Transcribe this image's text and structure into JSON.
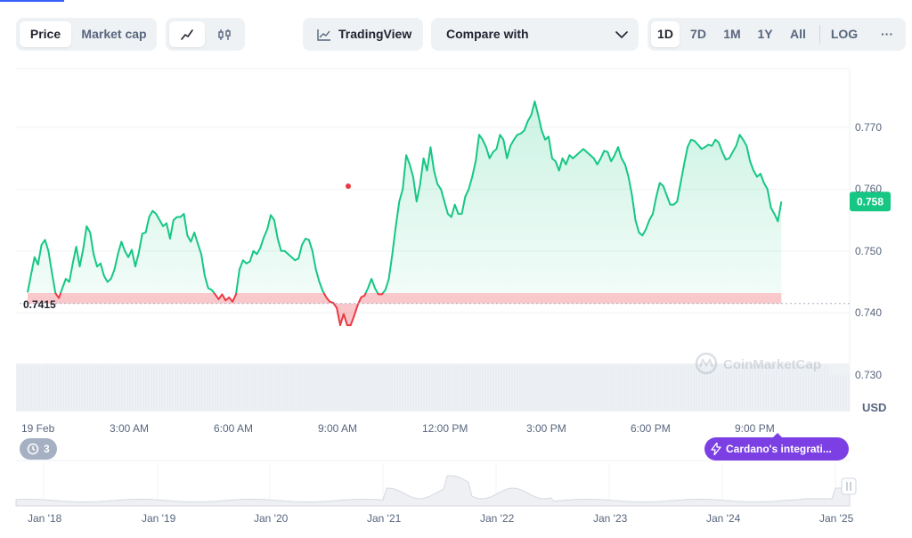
{
  "toolbar": {
    "metric_tabs": [
      "Price",
      "Market cap"
    ],
    "active_metric": "Price",
    "chart_kinds": [
      "line-chart-icon",
      "candlestick-icon"
    ],
    "tradingview_label": "TradingView",
    "compare_label": "Compare with",
    "ranges": [
      "1D",
      "7D",
      "1M",
      "1Y",
      "All"
    ],
    "active_range": "1D",
    "log_label": "LOG",
    "more_label": "···"
  },
  "chart_data": {
    "type": "area",
    "title": "",
    "ylabel": "USD",
    "ylim": [
      0.7275,
      0.7795
    ],
    "yticks": [
      0.73,
      0.74,
      0.75,
      0.76,
      0.77
    ],
    "ytick_labels": [
      "0.730",
      "0.740",
      "0.750",
      "0.760",
      "0.770"
    ],
    "xticks": [
      "19 Feb",
      "3:00 AM",
      "6:00 AM",
      "9:00 AM",
      "12:00 PM",
      "3:00 PM",
      "6:00 PM",
      "9:00 PM"
    ],
    "x_hours": [
      0,
      3,
      6,
      9,
      12,
      15,
      18,
      21
    ],
    "baseline": 0.7415,
    "baseline_label": "0.7415",
    "current_price": 0.758,
    "current_price_label": "0.758",
    "up_color": "#16c784",
    "down_color": "#ea3943",
    "series": [
      {
        "points": [
          [
            0.0,
            0.7433
          ],
          [
            0.1,
            0.7462
          ],
          [
            0.2,
            0.749
          ],
          [
            0.3,
            0.7478
          ],
          [
            0.4,
            0.751
          ],
          [
            0.5,
            0.7518
          ],
          [
            0.6,
            0.75
          ],
          [
            0.7,
            0.7465
          ],
          [
            0.8,
            0.7432
          ],
          [
            0.9,
            0.7424
          ],
          [
            1.0,
            0.744
          ],
          [
            1.1,
            0.7455
          ],
          [
            1.2,
            0.745
          ],
          [
            1.3,
            0.748
          ],
          [
            1.4,
            0.7507
          ],
          [
            1.5,
            0.7475
          ],
          [
            1.6,
            0.7503
          ],
          [
            1.7,
            0.754
          ],
          [
            1.8,
            0.753
          ],
          [
            1.9,
            0.7495
          ],
          [
            2.0,
            0.7475
          ],
          [
            2.1,
            0.748
          ],
          [
            2.2,
            0.746
          ],
          [
            2.3,
            0.745
          ],
          [
            2.4,
            0.7455
          ],
          [
            2.5,
            0.747
          ],
          [
            2.6,
            0.7495
          ],
          [
            2.7,
            0.7515
          ],
          [
            2.8,
            0.75
          ],
          [
            2.9,
            0.749
          ],
          [
            3.0,
            0.7502
          ],
          [
            3.1,
            0.7475
          ],
          [
            3.2,
            0.7497
          ],
          [
            3.3,
            0.7528
          ],
          [
            3.4,
            0.753
          ],
          [
            3.5,
            0.7555
          ],
          [
            3.6,
            0.7565
          ],
          [
            3.7,
            0.756
          ],
          [
            3.8,
            0.755
          ],
          [
            3.9,
            0.754
          ],
          [
            4.0,
            0.7545
          ],
          [
            4.1,
            0.752
          ],
          [
            4.2,
            0.755
          ],
          [
            4.3,
            0.7555
          ],
          [
            4.4,
            0.7555
          ],
          [
            4.5,
            0.756
          ],
          [
            4.6,
            0.7525
          ],
          [
            4.7,
            0.7515
          ],
          [
            4.8,
            0.753
          ],
          [
            4.9,
            0.7512
          ],
          [
            5.0,
            0.7495
          ],
          [
            5.1,
            0.746
          ],
          [
            5.2,
            0.744
          ],
          [
            5.3,
            0.7437
          ],
          [
            5.4,
            0.743
          ],
          [
            5.5,
            0.7422
          ],
          [
            5.6,
            0.743
          ],
          [
            5.7,
            0.742
          ],
          [
            5.8,
            0.7425
          ],
          [
            5.9,
            0.7418
          ],
          [
            6.0,
            0.743
          ],
          [
            6.1,
            0.747
          ],
          [
            6.2,
            0.7485
          ],
          [
            6.3,
            0.748
          ],
          [
            6.4,
            0.7483
          ],
          [
            6.5,
            0.75
          ],
          [
            6.6,
            0.7495
          ],
          [
            6.7,
            0.7505
          ],
          [
            6.8,
            0.7522
          ],
          [
            6.9,
            0.7535
          ],
          [
            7.0,
            0.7558
          ],
          [
            7.1,
            0.755
          ],
          [
            7.2,
            0.752
          ],
          [
            7.3,
            0.75
          ],
          [
            7.4,
            0.75
          ],
          [
            7.5,
            0.7495
          ],
          [
            7.6,
            0.749
          ],
          [
            7.7,
            0.7485
          ],
          [
            7.8,
            0.7488
          ],
          [
            7.9,
            0.751
          ],
          [
            8.0,
            0.752
          ],
          [
            8.1,
            0.7518
          ],
          [
            8.2,
            0.75
          ],
          [
            8.3,
            0.747
          ],
          [
            8.4,
            0.745
          ],
          [
            8.5,
            0.7435
          ],
          [
            8.6,
            0.7425
          ],
          [
            8.7,
            0.7418
          ],
          [
            8.8,
            0.7416
          ],
          [
            8.9,
            0.7408
          ],
          [
            9.0,
            0.738
          ],
          [
            9.1,
            0.7398
          ],
          [
            9.2,
            0.738
          ],
          [
            9.3,
            0.738
          ],
          [
            9.4,
            0.7395
          ],
          [
            9.5,
            0.7412
          ],
          [
            9.6,
            0.7425
          ],
          [
            9.7,
            0.7428
          ],
          [
            9.8,
            0.744
          ],
          [
            9.9,
            0.7455
          ],
          [
            10.0,
            0.744
          ],
          [
            10.1,
            0.743
          ],
          [
            10.2,
            0.743
          ],
          [
            10.3,
            0.7437
          ],
          [
            10.4,
            0.7455
          ],
          [
            10.5,
            0.7495
          ],
          [
            10.6,
            0.754
          ],
          [
            10.7,
            0.758
          ],
          [
            10.8,
            0.76
          ],
          [
            10.9,
            0.7655
          ],
          [
            11.0,
            0.764
          ],
          [
            11.1,
            0.762
          ],
          [
            11.2,
            0.758
          ],
          [
            11.3,
            0.7608
          ],
          [
            11.4,
            0.765
          ],
          [
            11.5,
            0.763
          ],
          [
            11.6,
            0.7668
          ],
          [
            11.7,
            0.763
          ],
          [
            11.8,
            0.7608
          ],
          [
            11.9,
            0.76
          ],
          [
            12.0,
            0.758
          ],
          [
            12.1,
            0.756
          ],
          [
            12.2,
            0.7555
          ],
          [
            12.3,
            0.7575
          ],
          [
            12.4,
            0.756
          ],
          [
            12.5,
            0.756
          ],
          [
            12.6,
            0.7588
          ],
          [
            12.7,
            0.76
          ],
          [
            12.8,
            0.762
          ],
          [
            12.9,
            0.7645
          ],
          [
            13.0,
            0.7688
          ],
          [
            13.1,
            0.768
          ],
          [
            13.2,
            0.7668
          ],
          [
            13.3,
            0.765
          ],
          [
            13.4,
            0.766
          ],
          [
            13.5,
            0.7665
          ],
          [
            13.6,
            0.7688
          ],
          [
            13.7,
            0.768
          ],
          [
            13.8,
            0.765
          ],
          [
            13.9,
            0.767
          ],
          [
            14.0,
            0.768
          ],
          [
            14.1,
            0.7688
          ],
          [
            14.2,
            0.769
          ],
          [
            14.3,
            0.7695
          ],
          [
            14.4,
            0.771
          ],
          [
            14.5,
            0.772
          ],
          [
            14.6,
            0.7742
          ],
          [
            14.7,
            0.772
          ],
          [
            14.8,
            0.7695
          ],
          [
            14.9,
            0.768
          ],
          [
            15.0,
            0.7685
          ],
          [
            15.1,
            0.765
          ],
          [
            15.2,
            0.7645
          ],
          [
            15.3,
            0.763
          ],
          [
            15.4,
            0.765
          ],
          [
            15.5,
            0.764
          ],
          [
            15.6,
            0.7655
          ],
          [
            15.7,
            0.765
          ],
          [
            15.8,
            0.7655
          ],
          [
            15.9,
            0.766
          ],
          [
            16.0,
            0.7665
          ],
          [
            16.1,
            0.766
          ],
          [
            16.2,
            0.7655
          ],
          [
            16.3,
            0.765
          ],
          [
            16.4,
            0.764
          ],
          [
            16.5,
            0.765
          ],
          [
            16.6,
            0.7662
          ],
          [
            16.7,
            0.766
          ],
          [
            16.8,
            0.7645
          ],
          [
            16.9,
            0.7655
          ],
          [
            17.0,
            0.7668
          ],
          [
            17.1,
            0.765
          ],
          [
            17.2,
            0.764
          ],
          [
            17.3,
            0.762
          ],
          [
            17.4,
            0.759
          ],
          [
            17.5,
            0.755
          ],
          [
            17.6,
            0.753
          ],
          [
            17.7,
            0.7525
          ],
          [
            17.8,
            0.7535
          ],
          [
            17.9,
            0.755
          ],
          [
            18.0,
            0.756
          ],
          [
            18.1,
            0.7588
          ],
          [
            18.2,
            0.761
          ],
          [
            18.3,
            0.7605
          ],
          [
            18.4,
            0.759
          ],
          [
            18.5,
            0.7575
          ],
          [
            18.6,
            0.7575
          ],
          [
            18.7,
            0.758
          ],
          [
            18.8,
            0.761
          ],
          [
            18.9,
            0.764
          ],
          [
            19.0,
            0.7668
          ],
          [
            19.1,
            0.768
          ],
          [
            19.2,
            0.7678
          ],
          [
            19.3,
            0.7672
          ],
          [
            19.4,
            0.7665
          ],
          [
            19.5,
            0.7668
          ],
          [
            19.6,
            0.7672
          ],
          [
            19.7,
            0.767
          ],
          [
            19.8,
            0.768
          ],
          [
            19.9,
            0.7675
          ],
          [
            20.0,
            0.766
          ],
          [
            20.1,
            0.7648
          ],
          [
            20.2,
            0.765
          ],
          [
            20.3,
            0.766
          ],
          [
            20.4,
            0.767
          ],
          [
            20.5,
            0.7688
          ],
          [
            20.6,
            0.768
          ],
          [
            20.7,
            0.767
          ],
          [
            20.8,
            0.7645
          ],
          [
            20.9,
            0.763
          ],
          [
            21.0,
            0.762
          ],
          [
            21.1,
            0.7625
          ],
          [
            21.2,
            0.761
          ],
          [
            21.3,
            0.76
          ],
          [
            21.4,
            0.757
          ],
          [
            21.5,
            0.756
          ],
          [
            21.6,
            0.7548
          ],
          [
            21.7,
            0.758
          ]
        ]
      }
    ]
  },
  "max_marker_label": "",
  "events_badge": "3",
  "news_badge": "Cardano's integrati...",
  "watermark": "CoinMarketCap",
  "navigator": {
    "labels": [
      "Jan '18",
      "Jan '19",
      "Jan '20",
      "Jan '21",
      "Jan '22",
      "Jan '23",
      "Jan '24",
      "Jan '25"
    ]
  }
}
